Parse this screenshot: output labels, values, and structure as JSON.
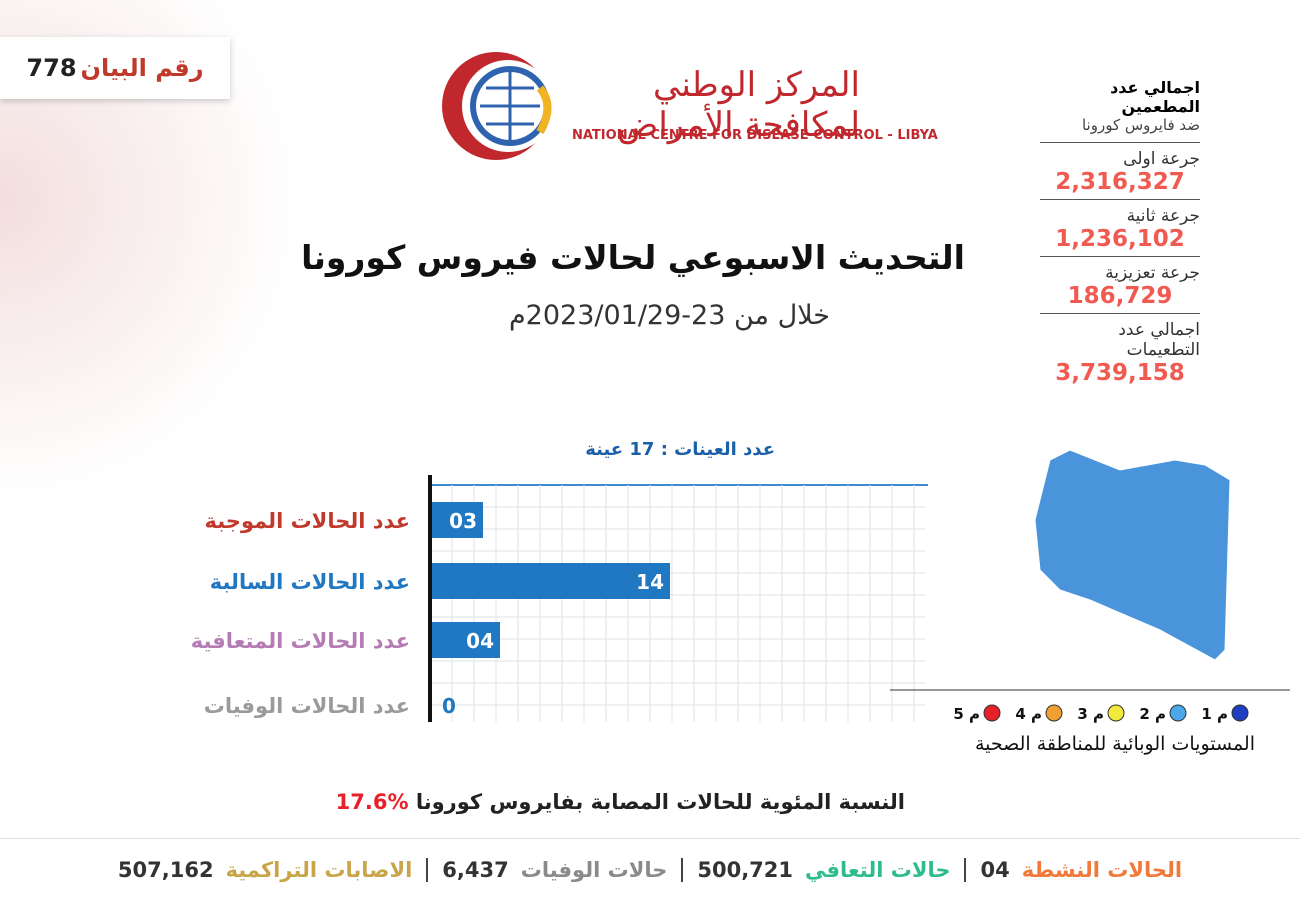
{
  "header": {
    "statement_label": "رقم البيان",
    "statement_number": "778",
    "logo_arabic": "المركز الوطني لمكافحة الأمراض",
    "logo_english": "NATIONAL CENTRE FOR DISEASE CONTROL - LIBYA",
    "title": "التحديث الاسبوعي لحالات فيروس كورونا",
    "subtitle": "خلال من 23-2023/01/29م"
  },
  "vaccination": {
    "heading": "اجمالي عدد المطعمين",
    "subheading": "ضد فايروس كورونا",
    "items": [
      {
        "label": "جرعة اولى",
        "value": "2,316,327"
      },
      {
        "label": "جرعة ثانية",
        "value": "1,236,102"
      },
      {
        "label": "جرعة تعزيزية",
        "value": "186,729"
      },
      {
        "label": "اجمالي عدد التطعيمات",
        "value": "3,739,158"
      }
    ]
  },
  "chart_data": {
    "type": "hbar",
    "title": "عدد العينات : 17 عينة",
    "categories": [
      "عدد الحالات الموجبة",
      "عدد الحالات السالبة",
      "عدد الحالات المتعافية",
      "عدد الحالات الوفيات"
    ],
    "category_colors": [
      "#c0392b",
      "#1f78c1",
      "#b57bb5",
      "#9a9a9a"
    ],
    "values": [
      3,
      14,
      4,
      0
    ],
    "value_labels": [
      "03",
      "14",
      "04",
      "0"
    ],
    "color": "#1f78c1",
    "xlim": [
      0,
      29
    ],
    "grid": true
  },
  "map_legend": {
    "title": "المستويات الوبائية للمناطقة الصحية",
    "items": [
      {
        "label": "م 1",
        "color": "#1e3fbf"
      },
      {
        "label": "م 2",
        "color": "#4aa8e8"
      },
      {
        "label": "م 3",
        "color": "#f2ea3a"
      },
      {
        "label": "م 4",
        "color": "#f0a030"
      },
      {
        "label": "م 5",
        "color": "#e8202a"
      }
    ]
  },
  "percentage": {
    "label": "النسبة المئوية للحالات المصابة بفايروس كورونا",
    "value": "17.6%"
  },
  "footer": [
    {
      "label": "الحالات النشطة",
      "value": "04"
    },
    {
      "label": "حالات التعافي",
      "value": "500,721"
    },
    {
      "label": "حالات الوفيات",
      "value": "6,437"
    },
    {
      "label": "الاصابات التراكمية",
      "value": "507,162"
    }
  ]
}
